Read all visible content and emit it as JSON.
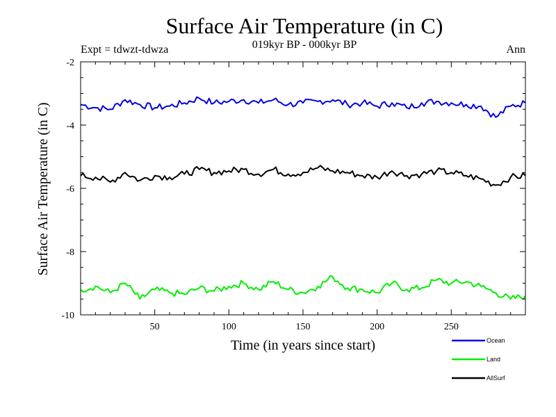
{
  "chart_data": {
    "type": "line",
    "title": "Surface Air Temperature (in C)",
    "subtitle": "019kyr BP - 000kyr BP",
    "experiment_label": "Expt = tdwzt-tdwza",
    "season_label": "Ann",
    "xlabel": "Time (in years since start)",
    "ylabel": "Surface Air Temperature (in C)",
    "xlim": [
      0,
      300
    ],
    "ylim": [
      -10,
      -2
    ],
    "x_ticks": [
      50,
      100,
      150,
      200,
      250
    ],
    "y_ticks": [
      -10,
      -8,
      -6,
      -4,
      -2
    ],
    "grid": false,
    "legend_position": "bottom-right",
    "series": [
      {
        "name": "Ocean",
        "color": "#0000dd",
        "x": [
          0,
          10,
          20,
          30,
          40,
          50,
          60,
          70,
          80,
          90,
          100,
          110,
          120,
          130,
          140,
          150,
          160,
          170,
          180,
          190,
          200,
          210,
          220,
          230,
          240,
          250,
          260,
          270,
          280,
          290,
          300
        ],
        "y": [
          -3.35,
          -3.45,
          -3.5,
          -3.2,
          -3.35,
          -3.45,
          -3.4,
          -3.3,
          -3.15,
          -3.3,
          -3.25,
          -3.2,
          -3.3,
          -3.2,
          -3.35,
          -3.3,
          -3.25,
          -3.2,
          -3.35,
          -3.3,
          -3.4,
          -3.3,
          -3.45,
          -3.3,
          -3.25,
          -3.3,
          -3.35,
          -3.4,
          -3.75,
          -3.4,
          -3.3
        ]
      },
      {
        "name": "Land",
        "color": "#00ee00",
        "x": [
          0,
          10,
          20,
          30,
          40,
          50,
          60,
          70,
          80,
          90,
          100,
          110,
          120,
          130,
          140,
          150,
          160,
          170,
          180,
          190,
          200,
          210,
          220,
          230,
          240,
          250,
          260,
          270,
          280,
          290,
          300
        ],
        "y": [
          -9.2,
          -9.1,
          -9.3,
          -9.0,
          -9.5,
          -9.2,
          -9.3,
          -9.35,
          -9.15,
          -9.25,
          -9.1,
          -9.0,
          -9.2,
          -8.95,
          -9.2,
          -9.3,
          -9.1,
          -8.8,
          -9.15,
          -9.2,
          -9.3,
          -9.0,
          -9.2,
          -9.15,
          -8.9,
          -9.0,
          -8.95,
          -9.1,
          -9.3,
          -9.5,
          -9.4
        ]
      },
      {
        "name": "AllSurf",
        "color": "#000000",
        "x": [
          0,
          10,
          20,
          30,
          40,
          50,
          60,
          70,
          80,
          90,
          100,
          110,
          120,
          130,
          140,
          150,
          160,
          170,
          180,
          190,
          200,
          210,
          220,
          230,
          240,
          250,
          260,
          270,
          280,
          290,
          300
        ],
        "y": [
          -5.6,
          -5.65,
          -5.8,
          -5.5,
          -5.75,
          -5.6,
          -5.65,
          -5.55,
          -5.4,
          -5.5,
          -5.45,
          -5.4,
          -5.55,
          -5.4,
          -5.55,
          -5.5,
          -5.35,
          -5.45,
          -5.5,
          -5.6,
          -5.65,
          -5.45,
          -5.6,
          -5.55,
          -5.45,
          -5.5,
          -5.6,
          -5.7,
          -5.9,
          -5.65,
          -5.6
        ]
      }
    ]
  }
}
